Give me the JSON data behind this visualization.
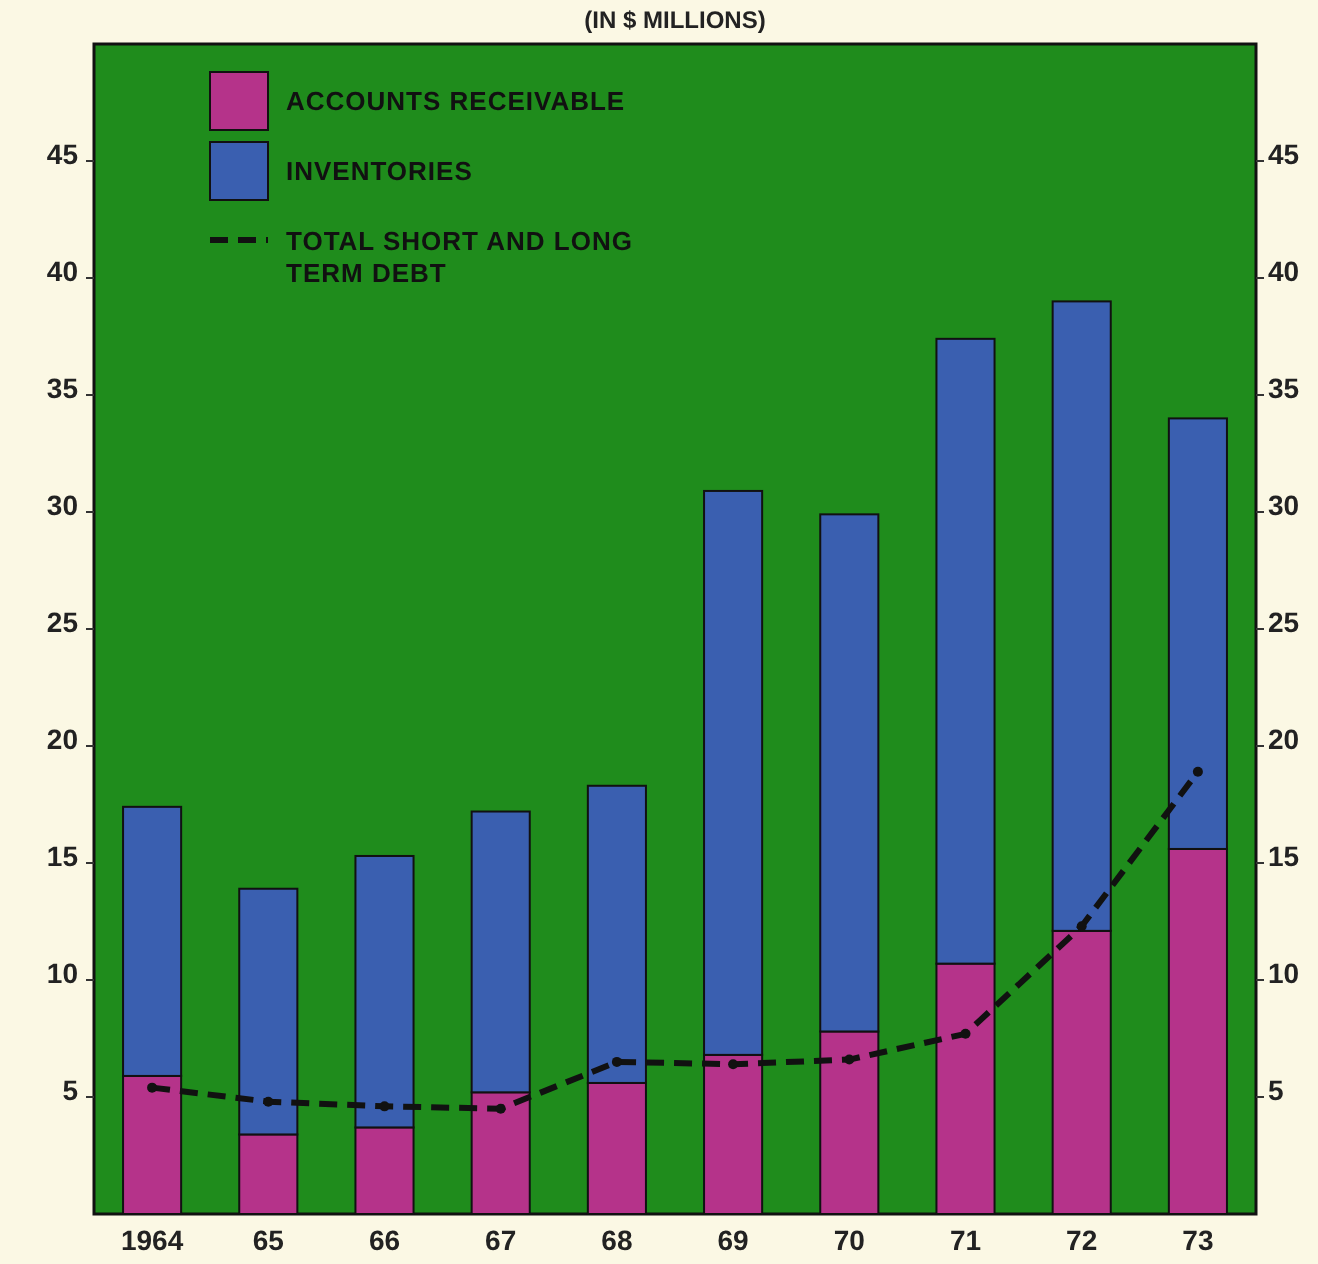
{
  "chart_data": {
    "type": "bar",
    "title": "(IN $ MILLIONS)",
    "stacked": true,
    "categories": [
      "1964",
      "65",
      "66",
      "67",
      "68",
      "69",
      "70",
      "71",
      "72",
      "73"
    ],
    "series": [
      {
        "name": "ACCOUNTS RECEIVABLE",
        "color": "#b5338a",
        "values": [
          5.9,
          3.4,
          3.7,
          5.2,
          5.6,
          6.8,
          7.8,
          10.7,
          12.1,
          15.6
        ]
      },
      {
        "name": "INVENTORIES",
        "color": "#3a5fb0",
        "values": [
          11.5,
          10.5,
          11.6,
          12.0,
          12.7,
          24.1,
          22.1,
          26.7,
          26.9,
          18.4
        ]
      },
      {
        "name": "TOTAL SHORT AND LONG TERM DEBT",
        "type": "line",
        "color": "#111111",
        "line_style": "dashed",
        "marker": "circle",
        "values": [
          5.4,
          4.8,
          4.6,
          4.5,
          6.5,
          6.4,
          6.6,
          7.7,
          12.3,
          18.9
        ]
      }
    ],
    "ylim": [
      0,
      50
    ],
    "yticks": [
      5,
      10,
      15,
      20,
      25,
      30,
      35,
      40,
      45
    ],
    "y2lim": [
      0,
      50
    ],
    "y2ticks": [
      5,
      10,
      15,
      20,
      25,
      30,
      35,
      40,
      45
    ],
    "grid": false,
    "legend": "top left"
  }
}
